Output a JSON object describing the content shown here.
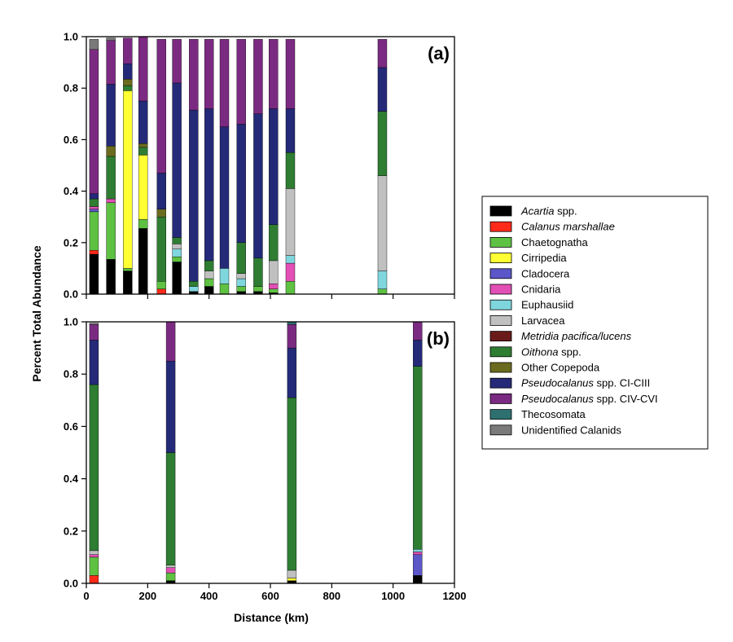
{
  "chart_data": [
    {
      "type": "bar",
      "stacked": true,
      "panel_label": "(a)",
      "xlabel": "Distance (km)",
      "ylabel": "Percent Total Abundance",
      "xlim": [
        0,
        1200
      ],
      "ylim": [
        0,
        1.0
      ],
      "x_ticks": [],
      "y_ticks": [
        "0.0",
        "0.2",
        "0.4",
        "0.6",
        "0.8",
        "1.0"
      ],
      "grid": false,
      "bars": [
        {
          "x": 25,
          "values": {
            "Acartia spp.": 0.155,
            "Calanus marshallae": 0.015,
            "Chaetognatha": 0.15,
            "Cladocera": 0.01,
            "Cnidaria": 0.01,
            "Oithona spp.": 0.03,
            "Pseudocalanus spp. CI-CIII": 0.02,
            "Pseudocalanus spp. CIV-CVI": 0.56,
            "Unidentified Calanids": 0.04
          }
        },
        {
          "x": 80,
          "values": {
            "Acartia spp.": 0.135,
            "Chaetognatha": 0.22,
            "Cnidaria": 0.015,
            "Oithona spp.": 0.165,
            "Other Copepoda": 0.04,
            "Pseudocalanus spp. CI-CIII": 0.24,
            "Pseudocalanus spp. CIV-CVI": 0.17,
            "Unidentified Calanids": 0.01
          }
        },
        {
          "x": 135,
          "values": {
            "Acartia spp.": 0.09,
            "Chaetognatha": 0.01,
            "Cirripedia": 0.69,
            "Oithona spp.": 0.02,
            "Other Copepoda": 0.025,
            "Pseudocalanus spp. CI-CIII": 0.06,
            "Pseudocalanus spp. CIV-CVI": 0.1
          }
        },
        {
          "x": 185,
          "values": {
            "Acartia spp.": 0.255,
            "Chaetognatha": 0.035,
            "Cirripedia": 0.25,
            "Oithona spp.": 0.03,
            "Other Copepoda": 0.015,
            "Pseudocalanus spp. CI-CIII": 0.165,
            "Pseudocalanus spp. CIV-CVI": 0.25
          }
        },
        {
          "x": 245,
          "values": {
            "Calanus marshallae": 0.02,
            "Chaetognatha": 0.03,
            "Oithona spp.": 0.25,
            "Other Copepoda": 0.03,
            "Pseudocalanus spp. CI-CIII": 0.14,
            "Pseudocalanus spp. CIV-CVI": 0.52
          }
        },
        {
          "x": 295,
          "values": {
            "Acartia spp.": 0.125,
            "Chaetognatha": 0.02,
            "Euphausiid": 0.03,
            "Larvacea": 0.02,
            "Oithona spp.": 0.025,
            "Pseudocalanus spp. CI-CIII": 0.6,
            "Pseudocalanus spp. CIV-CVI": 0.17
          }
        },
        {
          "x": 350,
          "values": {
            "Acartia spp.": 0.01,
            "Oithona spp.": 0.02,
            "Euphausiid": 0.02,
            "Pseudocalanus spp. CI-CIII": 0.665,
            "Pseudocalanus spp. CIV-CVI": 0.275
          }
        },
        {
          "x": 400,
          "values": {
            "Acartia spp.": 0.03,
            "Chaetognatha": 0.03,
            "Oithona spp.": 0.04,
            "Larvacea": 0.03,
            "Pseudocalanus spp. CI-CIII": 0.59,
            "Pseudocalanus spp. CIV-CVI": 0.27
          }
        },
        {
          "x": 450,
          "values": {
            "Chaetognatha": 0.04,
            "Euphausiid": 0.06,
            "Pseudocalanus spp. CI-CIII": 0.55,
            "Pseudocalanus spp. CIV-CVI": 0.34
          }
        },
        {
          "x": 505,
          "values": {
            "Acartia spp.": 0.01,
            "Chaetognatha": 0.02,
            "Euphausiid": 0.03,
            "Larvacea": 0.02,
            "Oithona spp.": 0.12,
            "Pseudocalanus spp. CI-CIII": 0.46,
            "Pseudocalanus spp. CIV-CVI": 0.33
          }
        },
        {
          "x": 560,
          "values": {
            "Acartia spp.": 0.01,
            "Chaetognatha": 0.02,
            "Oithona spp.": 0.11,
            "Pseudocalanus spp. CI-CIII": 0.56,
            "Pseudocalanus spp. CIV-CVI": 0.29
          }
        },
        {
          "x": 610,
          "values": {
            "Acartia spp.": 0.005,
            "Chaetognatha": 0.015,
            "Cnidaria": 0.02,
            "Larvacea": 0.09,
            "Oithona spp.": 0.14,
            "Pseudocalanus spp. CI-CIII": 0.45,
            "Pseudocalanus spp. CIV-CVI": 0.27
          }
        },
        {
          "x": 665,
          "values": {
            "Chaetognatha": 0.05,
            "Cnidaria": 0.07,
            "Euphausiid": 0.03,
            "Larvacea": 0.26,
            "Oithona spp.": 0.14,
            "Pseudocalanus spp. CI-CIII": 0.17,
            "Pseudocalanus spp. CIV-CVI": 0.27
          }
        },
        {
          "x": 965,
          "values": {
            "Chaetognatha": 0.02,
            "Euphausiid": 0.07,
            "Larvacea": 0.37,
            "Oithona spp.": 0.25,
            "Pseudocalanus spp. CI-CIII": 0.17,
            "Pseudocalanus spp. CIV-CVI": 0.11
          }
        }
      ]
    },
    {
      "type": "bar",
      "stacked": true,
      "panel_label": "(b)",
      "xlabel": "Distance (km)",
      "ylabel": "Percent Total Abundance",
      "xlim": [
        0,
        1200
      ],
      "ylim": [
        0,
        1.0
      ],
      "x_ticks": [
        "0",
        "200",
        "400",
        "600",
        "800",
        "1000",
        "1200"
      ],
      "y_ticks": [
        "0.0",
        "0.2",
        "0.4",
        "0.6",
        "0.8",
        "1.0"
      ],
      "grid": false,
      "bars": [
        {
          "x": 25,
          "values": {
            "Calanus marshallae": 0.03,
            "Chaetognatha": 0.07,
            "Cnidaria": 0.01,
            "Larvacea": 0.015,
            "Oithona spp.": 0.635,
            "Pseudocalanus spp. CI-CIII": 0.17,
            "Pseudocalanus spp. CIV-CVI": 0.06,
            "Unidentified Calanids": 0.005
          }
        },
        {
          "x": 275,
          "values": {
            "Acartia spp.": 0.01,
            "Chaetognatha": 0.03,
            "Cnidaria": 0.02,
            "Larvacea": 0.01,
            "Oithona spp.": 0.43,
            "Pseudocalanus spp. CI-CIII": 0.35,
            "Pseudocalanus spp. CIV-CVI": 0.15
          }
        },
        {
          "x": 670,
          "values": {
            "Acartia spp.": 0.01,
            "Cirripedia": 0.01,
            "Larvacea": 0.03,
            "Oithona spp.": 0.66,
            "Pseudocalanus spp. CI-CIII": 0.19,
            "Pseudocalanus spp. CIV-CVI": 0.09,
            "Thecosomata": 0.01
          }
        },
        {
          "x": 1080,
          "values": {
            "Acartia spp.": 0.03,
            "Cladocera": 0.08,
            "Cnidaria": 0.01,
            "Euphausiid": 0.01,
            "Oithona spp.": 0.7,
            "Pseudocalanus spp. CI-CIII": 0.1,
            "Pseudocalanus spp. CIV-CVI": 0.07
          }
        }
      ]
    }
  ],
  "legend": {
    "placement": "right",
    "entries": [
      {
        "label": "Acartia spp.",
        "italic_part": "Acartia",
        "normal_part": " spp.",
        "color": "#000000"
      },
      {
        "label": "Calanus marshallae",
        "italic_part": "Calanus marshallae",
        "normal_part": "",
        "color": "#ff2a1a"
      },
      {
        "label": "Chaetognatha",
        "italic_part": "",
        "normal_part": "Chaetognatha",
        "color": "#5ec142"
      },
      {
        "label": "Cirripedia",
        "italic_part": "",
        "normal_part": "Cirripedia",
        "color": "#ffff33"
      },
      {
        "label": "Cladocera",
        "italic_part": "",
        "normal_part": "Cladocera",
        "color": "#5b57c8"
      },
      {
        "label": "Cnidaria",
        "italic_part": "",
        "normal_part": "Cnidaria",
        "color": "#e24fb5"
      },
      {
        "label": "Euphausiid",
        "italic_part": "",
        "normal_part": "Euphausiid",
        "color": "#7fd6dd"
      },
      {
        "label": "Larvacea",
        "italic_part": "",
        "normal_part": "Larvacea",
        "color": "#c0c0c0"
      },
      {
        "label": "Metridia pacifica/lucens",
        "italic_part": "Metridia pacifica/lucens",
        "normal_part": "",
        "color": "#6b1a1a"
      },
      {
        "label": "Oithona spp.",
        "italic_part": "Oithona",
        "normal_part": " spp.",
        "color": "#2e7d32"
      },
      {
        "label": "Other Copepoda",
        "italic_part": "",
        "normal_part": "Other Copepoda",
        "color": "#6b6b1f"
      },
      {
        "label": "Pseudocalanus spp. CI-CIII",
        "italic_part": "Pseudocalanus",
        "normal_part": " spp. CI-CIII",
        "color": "#242a78"
      },
      {
        "label": "Pseudocalanus spp. CIV-CVI",
        "italic_part": "Pseudocalanus",
        "normal_part": " spp. CIV-CVI",
        "color": "#7b2a82"
      },
      {
        "label": "Thecosomata",
        "italic_part": "",
        "normal_part": "Thecosomata",
        "color": "#2e7070"
      },
      {
        "label": "Unidentified Calanids",
        "italic_part": "",
        "normal_part": "Unidentified Calanids",
        "color": "#7a7a7a"
      }
    ]
  }
}
